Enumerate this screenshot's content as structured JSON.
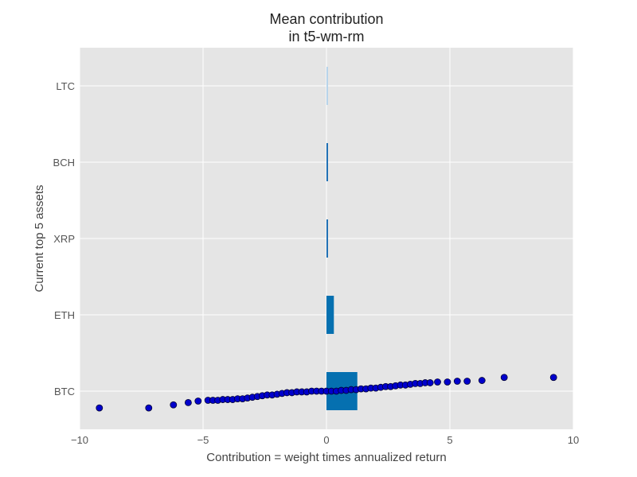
{
  "chart_data": {
    "type": "bar",
    "orientation": "horizontal",
    "title_line1": "Mean contribution",
    "title_line2": "in t5-wm-rm",
    "xlabel": "Contribution = weight times annualized return",
    "ylabel": "Current top 5 assets",
    "xlim": [
      -10,
      10
    ],
    "xticks": [
      "−10",
      "−5",
      "0",
      "5",
      "10"
    ],
    "grid": true,
    "categories": [
      "LTC",
      "BCH",
      "XRP",
      "ETH",
      "BTC"
    ],
    "values": [
      0.02,
      0.05,
      0.04,
      0.3,
      1.25
    ],
    "bar_colors": [
      "#b7d4ea",
      "#2171b5",
      "#2171b5",
      "#0570b0",
      "#0570b0"
    ],
    "overlay_series": {
      "kind": "scatter",
      "category": "BTC",
      "color": "#0000cc",
      "x": [
        -9.2,
        -7.2,
        -6.2,
        -5.6,
        -5.2,
        -4.8,
        -4.6,
        -4.4,
        -4.2,
        -4.0,
        -3.8,
        -3.6,
        -3.4,
        -3.2,
        -3.0,
        -2.8,
        -2.6,
        -2.4,
        -2.2,
        -2.0,
        -1.8,
        -1.6,
        -1.4,
        -1.2,
        -1.0,
        -0.8,
        -0.6,
        -0.4,
        -0.2,
        0.0,
        0.2,
        0.4,
        0.6,
        0.8,
        1.0,
        1.2,
        1.4,
        1.6,
        1.8,
        2.0,
        2.2,
        2.4,
        2.6,
        2.8,
        3.0,
        3.2,
        3.4,
        3.6,
        3.8,
        4.0,
        4.2,
        4.5,
        4.9,
        5.3,
        5.7,
        6.3,
        7.2,
        9.2
      ],
      "y_offset": [
        -0.22,
        -0.22,
        -0.18,
        -0.15,
        -0.13,
        -0.12,
        -0.12,
        -0.12,
        -0.11,
        -0.11,
        -0.11,
        -0.1,
        -0.1,
        -0.09,
        -0.08,
        -0.07,
        -0.06,
        -0.05,
        -0.05,
        -0.04,
        -0.03,
        -0.02,
        -0.02,
        -0.01,
        -0.01,
        -0.01,
        0.0,
        0.0,
        0.0,
        0.0,
        0.0,
        0.0,
        0.01,
        0.01,
        0.02,
        0.02,
        0.03,
        0.03,
        0.04,
        0.04,
        0.05,
        0.06,
        0.06,
        0.07,
        0.08,
        0.08,
        0.09,
        0.1,
        0.1,
        0.11,
        0.11,
        0.12,
        0.12,
        0.13,
        0.13,
        0.14,
        0.18,
        0.18
      ]
    }
  }
}
